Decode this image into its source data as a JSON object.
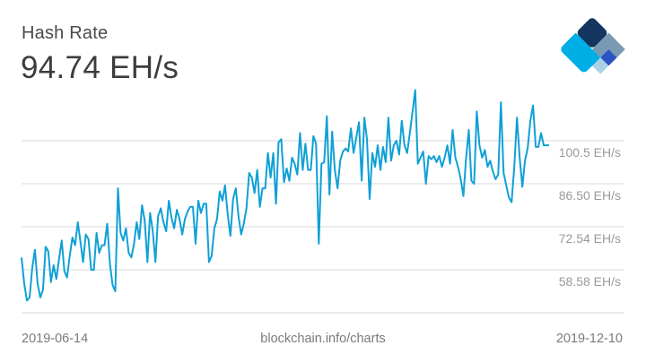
{
  "header": {
    "title": "Hash Rate",
    "current_value": "94.74 EH/s"
  },
  "logo": {
    "name": "blockchain-logo",
    "colors": [
      "#7a9ab4",
      "#13355f",
      "#2c52c4",
      "#a9d0e6",
      "#00aee6"
    ]
  },
  "footer": {
    "start_date": "2019-06-14",
    "source": "blockchain.info/charts",
    "end_date": "2019-12-10"
  },
  "colors": {
    "line": "#0fa0d6",
    "grid": "#d9d9d9",
    "axis_label": "#9a9a9a"
  },
  "chart_data": {
    "type": "line",
    "title": "Hash Rate",
    "subtitle": "94.74 EH/s",
    "xlabel": "",
    "ylabel": "",
    "x_range": [
      "2019-06-14",
      "2019-12-10"
    ],
    "y_ticks": [
      "100.5 EH/s",
      "86.50 EH/s",
      "72.54 EH/s",
      "58.58 EH/s"
    ],
    "y_tick_values": [
      100.5,
      86.5,
      72.54,
      58.58
    ],
    "ylim": [
      44.6,
      114.5
    ],
    "grid": true,
    "legend": "none",
    "source": "blockchain.info/charts",
    "series": [
      {
        "name": "Hash Rate (EH/s)",
        "values": [
          62.5,
          54.0,
          48.5,
          49.5,
          59.0,
          65.0,
          54.0,
          49.5,
          52.0,
          66.0,
          64.5,
          54.5,
          60.0,
          55.5,
          62.0,
          68.0,
          58.0,
          56.0,
          63.0,
          69.0,
          66.5,
          74.0,
          67.5,
          61.0,
          70.0,
          68.5,
          58.5,
          58.5,
          70.5,
          64.0,
          66.5,
          66.5,
          73.5,
          60.5,
          53.5,
          51.5,
          85.0,
          70.5,
          68.0,
          72.0,
          64.0,
          62.5,
          67.0,
          74.0,
          68.5,
          79.5,
          74.5,
          61.0,
          77.0,
          71.0,
          61.0,
          76.0,
          78.5,
          74.0,
          71.0,
          81.0,
          75.5,
          72.0,
          78.0,
          75.0,
          70.0,
          75.0,
          77.5,
          79.0,
          79.0,
          67.0,
          81.0,
          77.0,
          80.0,
          80.0,
          61.0,
          63.0,
          72.0,
          75.0,
          84.0,
          81.0,
          86.0,
          76.5,
          69.5,
          81.5,
          85.0,
          76.0,
          70.0,
          73.5,
          78.5,
          90.0,
          88.5,
          83.5,
          91.0,
          79.0,
          85.0,
          85.0,
          96.5,
          88.5,
          96.5,
          80.0,
          100.0,
          101.0,
          87.0,
          91.5,
          87.5,
          95.0,
          93.0,
          89.5,
          103.0,
          91.0,
          99.5,
          91.0,
          91.0,
          102.0,
          99.5,
          67.0,
          93.0,
          93.5,
          108.5,
          83.0,
          103.5,
          91.0,
          85.0,
          94.0,
          97.0,
          98.0,
          97.0,
          104.5,
          96.5,
          101.5,
          106.5,
          87.5,
          108.0,
          101.0,
          81.5,
          96.5,
          92.0,
          99.0,
          91.0,
          98.5,
          93.5,
          108.0,
          94.0,
          99.0,
          100.5,
          96.0,
          107.0,
          99.0,
          96.5,
          103.0,
          110.0,
          117.0,
          93.0,
          95.0,
          97.0,
          86.5,
          95.5,
          94.5,
          95.5,
          93.5,
          95.5,
          92.0,
          95.0,
          99.0,
          93.0,
          104.0,
          95.0,
          92.0,
          88.0,
          82.5,
          95.0,
          104.0,
          87.5,
          86.5,
          110.0,
          99.0,
          95.0,
          97.5,
          92.0,
          94.0,
          90.5,
          88.0,
          89.5,
          113.0,
          90.0,
          86.0,
          82.0,
          80.5,
          92.0,
          108.0,
          95.0,
          85.5,
          94.0,
          98.0,
          107.0,
          112.0,
          98.5,
          98.5,
          103.0,
          99.0,
          99.0,
          99.0
        ]
      }
    ]
  }
}
